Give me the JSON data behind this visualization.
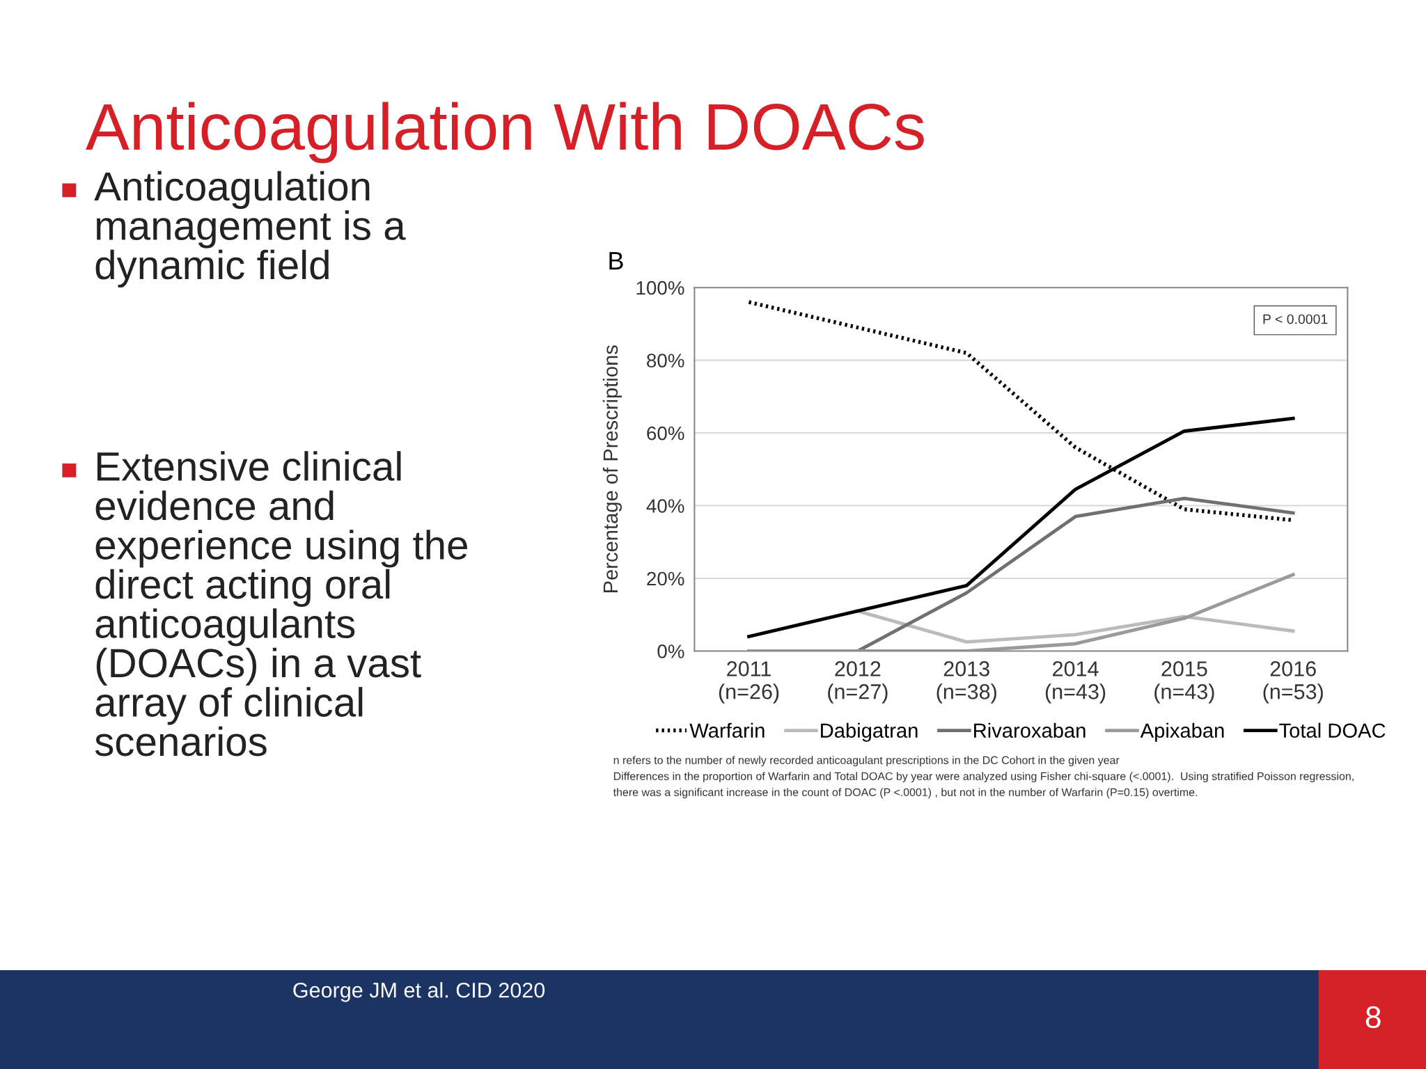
{
  "chart_data": {
    "type": "line",
    "title": "Anticoagulation With DOACs",
    "ylabel": "Percentage of Prescriptions",
    "categories": [
      "2011\n(n=26)",
      "2012\n(n=27)",
      "2013\n(n=38)",
      "2014\n(n=43)",
      "2015\n(n=43)",
      "2016\n(n=53)"
    ],
    "series": [
      {
        "name": "Warfarin",
        "color": "#000000",
        "line_style": "dotted",
        "values": [
          96,
          89,
          82,
          56,
          39,
          36
        ]
      },
      {
        "name": "Dabigatran",
        "color": "#bbbbbb",
        "values": [
          null,
          11,
          2.5,
          4.5,
          9.5,
          5.5
        ]
      },
      {
        "name": "Rivaroxaban",
        "color": "#707070",
        "values": [
          0,
          0,
          16,
          37,
          42,
          38
        ]
      },
      {
        "name": "Apixaban",
        "color": "#9a9a9a",
        "values": [
          0,
          0,
          0,
          2,
          9,
          21
        ]
      },
      {
        "name": "Total DOAC",
        "color": "#000000",
        "values": [
          4,
          11,
          18,
          44.5,
          60.5,
          64
        ]
      }
    ],
    "ylim": [
      0,
      100
    ],
    "yticks": [
      {
        "value": 0,
        "label": "0%"
      },
      {
        "value": 20,
        "label": "20%"
      },
      {
        "value": 40,
        "label": "40%"
      },
      {
        "value": 60,
        "label": "60%"
      },
      {
        "value": 80,
        "label": "80%"
      },
      {
        "value": 100,
        "label": "100%"
      }
    ],
    "grid": "y",
    "legend": "bottom",
    "marker": "none",
    "annotations": [
      "B",
      "P < 0.0001",
      "n refers to the number of newly recorded anticoagulant prescriptions in the DC Cohort in the given year",
      "Differences in the proportion of Warfarin and Total DOAC by year were analyzed using Fisher chi-square (<.0001).  Using stratified Poisson regression,",
      "there was a significant increase in the count of DOAC (P <.0001) , but not in the number of Warfarin (P=0.15) overtime.",
      "Anticoagulation\nmanagement is a\ndynamic field",
      "Extensive clinical\nevidence and\nexperience using the\ndirect acting oral\nanticoagulants\n(DOACs) in a vast\narray of clinical\nscenarios",
      "George JM et al. CID 2020",
      "8"
    ]
  }
}
